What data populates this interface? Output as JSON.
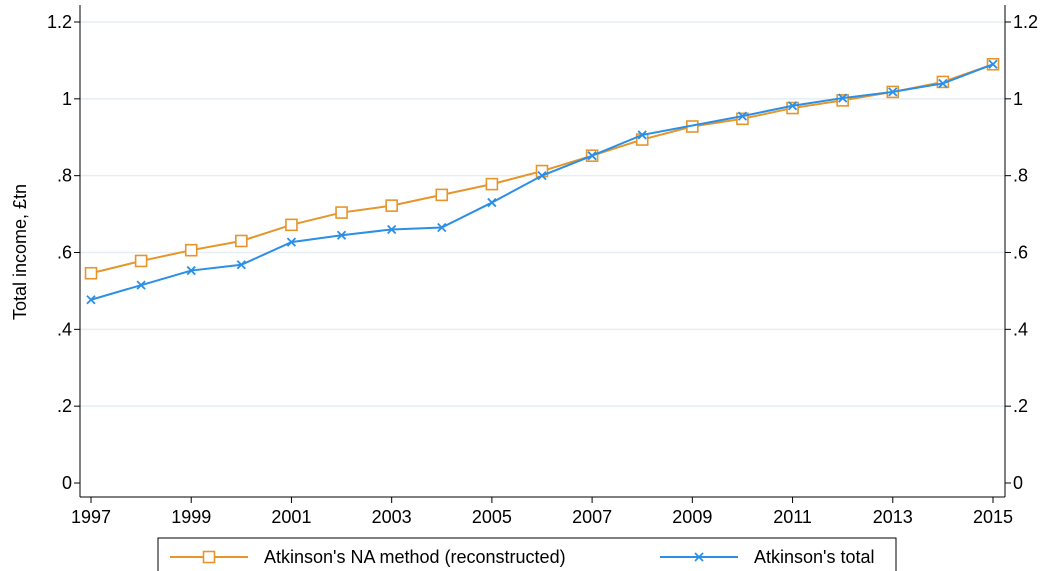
{
  "chart_data": {
    "type": "line",
    "ylabel": "Total income, £tn",
    "xlabel": "",
    "ylim": [
      0,
      1.2
    ],
    "xlim": [
      1997,
      2015
    ],
    "y_ticks": [
      0,
      0.2,
      0.4,
      0.6,
      0.8,
      1,
      1.2
    ],
    "y_tick_labels": [
      "0",
      ".2",
      ".4",
      ".6",
      ".8",
      "1",
      "1.2"
    ],
    "x_ticks": [
      1997,
      1999,
      2001,
      2003,
      2005,
      2007,
      2009,
      2011,
      2013,
      2015
    ],
    "x_tick_labels": [
      "1997",
      "1999",
      "2001",
      "2003",
      "2005",
      "2007",
      "2009",
      "2011",
      "2013",
      "2015"
    ],
    "grid": true,
    "legend_position": "bottom",
    "x": [
      1997,
      1998,
      1999,
      2000,
      2001,
      2002,
      2003,
      2004,
      2005,
      2006,
      2007,
      2008,
      2009,
      2010,
      2011,
      2012,
      2013,
      2014,
      2015
    ],
    "series": [
      {
        "name": "Atkinson's NA method (reconstructed)",
        "marker": "square",
        "color": "#E6952B",
        "values": [
          0.546,
          0.578,
          0.606,
          0.63,
          0.672,
          0.704,
          0.722,
          0.75,
          0.778,
          0.812,
          0.852,
          0.894,
          0.928,
          0.948,
          0.976,
          0.996,
          1.018,
          1.044,
          1.09
        ]
      },
      {
        "name": "Atkinson's total",
        "marker": "x",
        "color": "#2B8FE6",
        "values": [
          0.477,
          0.515,
          0.553,
          0.568,
          0.627,
          0.645,
          0.66,
          0.665,
          0.73,
          0.8,
          0.852,
          0.906,
          null,
          0.955,
          0.982,
          1.002,
          1.018,
          1.04,
          1.09
        ]
      }
    ]
  }
}
